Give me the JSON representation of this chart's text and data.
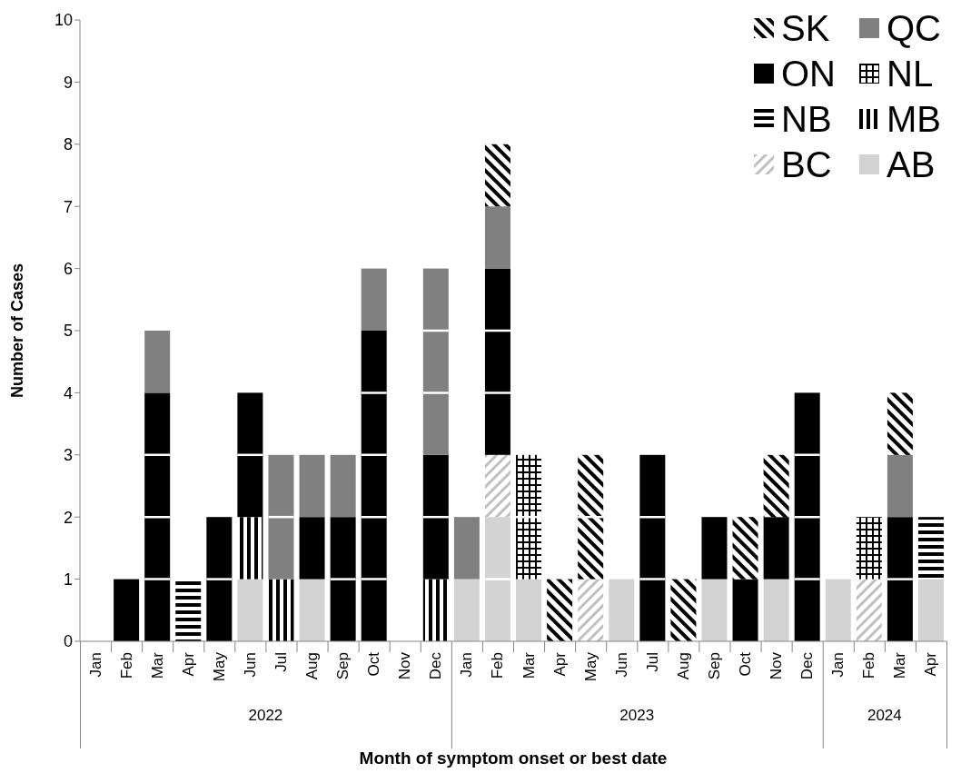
{
  "chart_data": {
    "type": "bar",
    "stacked": true,
    "xlabel": "Month of symptom onset or best date",
    "ylabel": "Number of Cases",
    "categories": [
      "Jan",
      "Feb",
      "Mar",
      "Apr",
      "May",
      "Jun",
      "Jul",
      "Aug",
      "Sep",
      "Oct",
      "Nov",
      "Dec",
      "Jan",
      "Feb",
      "Mar",
      "Apr",
      "May",
      "Jun",
      "Jul",
      "Aug",
      "Sep",
      "Oct",
      "Nov",
      "Dec",
      "Jan",
      "Feb",
      "Mar",
      "Apr"
    ],
    "series": [
      {
        "name": "AB",
        "color": "#d3d3d3",
        "values": [
          0,
          0,
          0,
          0,
          0,
          1,
          0,
          1,
          0,
          0,
          0,
          0,
          1,
          2,
          1,
          0,
          0,
          1,
          0,
          0,
          1,
          0,
          1,
          0,
          1,
          0,
          0,
          1
        ]
      },
      {
        "name": "BC",
        "color": "#c0c0c0",
        "values": [
          0,
          0,
          0,
          0,
          0,
          0,
          0,
          0,
          0,
          0,
          0,
          0,
          0,
          1,
          0,
          0,
          1,
          0,
          0,
          0,
          0,
          0,
          0,
          0,
          0,
          1,
          0,
          0
        ]
      },
      {
        "name": "MB",
        "color": "#000000",
        "values": [
          0,
          0,
          0,
          0,
          0,
          1,
          1,
          0,
          0,
          0,
          0,
          1,
          0,
          0,
          0,
          0,
          0,
          0,
          0,
          0,
          0,
          0,
          0,
          0,
          0,
          0,
          0,
          0
        ]
      },
      {
        "name": "NB",
        "color": "#000000",
        "values": [
          0,
          0,
          0,
          1,
          0,
          0,
          0,
          0,
          0,
          0,
          0,
          0,
          0,
          0,
          0,
          0,
          0,
          0,
          0,
          0,
          0,
          0,
          0,
          0,
          0,
          0,
          0,
          1
        ]
      },
      {
        "name": "NL",
        "color": "#000000",
        "values": [
          0,
          0,
          0,
          0,
          0,
          0,
          0,
          0,
          0,
          0,
          0,
          0,
          0,
          0,
          2,
          0,
          0,
          0,
          0,
          0,
          0,
          0,
          0,
          0,
          0,
          1,
          0,
          0
        ]
      },
      {
        "name": "ON",
        "color": "#000000",
        "values": [
          0,
          1,
          4,
          0,
          2,
          2,
          0,
          1,
          2,
          5,
          0,
          2,
          0,
          3,
          0,
          0,
          0,
          0,
          3,
          0,
          1,
          1,
          1,
          4,
          0,
          0,
          2,
          0
        ]
      },
      {
        "name": "QC",
        "color": "#808080",
        "values": [
          0,
          0,
          1,
          0,
          0,
          0,
          2,
          1,
          1,
          1,
          0,
          3,
          1,
          1,
          0,
          0,
          0,
          0,
          0,
          0,
          0,
          0,
          0,
          0,
          0,
          0,
          1,
          0
        ]
      },
      {
        "name": "SK",
        "color": "#000000",
        "values": [
          0,
          0,
          0,
          0,
          0,
          0,
          0,
          0,
          0,
          0,
          0,
          0,
          0,
          1,
          0,
          1,
          2,
          0,
          0,
          1,
          0,
          1,
          1,
          0,
          0,
          0,
          1,
          0
        ]
      }
    ],
    "ylim": [
      0,
      10
    ],
    "yticks": [
      0,
      1,
      2,
      3,
      4,
      5,
      6,
      7,
      8,
      9,
      10
    ],
    "grid": false,
    "legend": "top right",
    "annotations": [
      "2022",
      "2023",
      "2024"
    ]
  }
}
